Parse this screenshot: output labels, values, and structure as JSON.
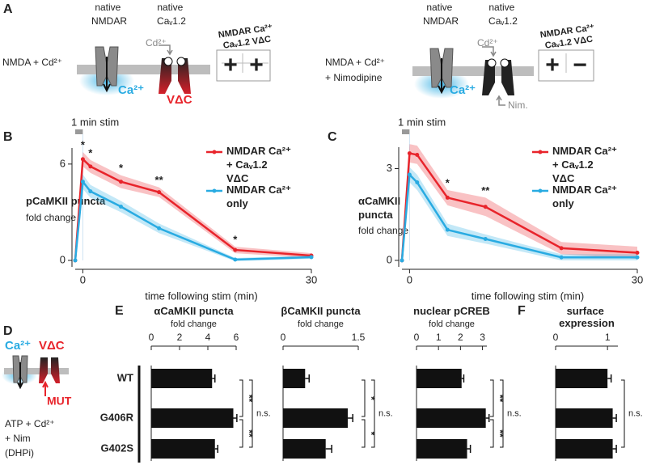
{
  "panel_labels": [
    "A",
    "B",
    "C",
    "D",
    "E",
    "F"
  ],
  "panel_a": [
    {
      "condition": "NMDA + Cd²⁺",
      "channel_1": "native NMDAR",
      "channel_2": "native Caᵥ1.2",
      "ion_blocker": "Cd²⁺",
      "ion": "Ca²⁺",
      "signal": "VΔC",
      "readouts": [
        {
          "label": "NMDAR Ca²⁺",
          "effect": "+",
          "color": "#29abe2"
        },
        {
          "label": "Caᵥ1.2 VΔC",
          "effect": "+",
          "color": "#e8242b"
        }
      ]
    },
    {
      "condition": "NMDA + Cd²⁺ + Nimodipine",
      "channel_1": "native NMDAR",
      "channel_2": "native Caᵥ1.2",
      "ion_blocker": "Cd²⁺",
      "ion": "Ca²⁺",
      "drug": "Nim.",
      "readouts": [
        {
          "label": "NMDAR Ca²⁺",
          "effect": "+",
          "color": "#29abe2"
        },
        {
          "label": "Caᵥ1.2 VΔC",
          "effect": "−",
          "color": "#8c8c8c"
        }
      ]
    }
  ],
  "panel_d": {
    "ion": "Ca²⁺",
    "signal": "VΔC",
    "mutation": "MUT",
    "condition": "ATP + Cd²⁺ + Nim (DHPi)"
  },
  "chart_data": [
    {
      "type": "line",
      "y_label": "pCaMKII puncta",
      "y_sublabel": "fold change",
      "x_label": "time following stim (min)",
      "stim_label": "1 min stim",
      "stim": [
        -1,
        0
      ],
      "x": [
        -1,
        0,
        1,
        5,
        10,
        20,
        30
      ],
      "xlim": [
        -1,
        30
      ],
      "xticks": [
        0,
        30
      ],
      "ylim": [
        0,
        7
      ],
      "yticks": [
        0,
        6
      ],
      "series": [
        {
          "name": "NMDAR Ca²⁺ + Caᵥ1.2 VΔC",
          "color": "#e8242b",
          "values": [
            0,
            6.3,
            5.85,
            4.9,
            4.25,
            0.65,
            0.3
          ],
          "errors": [
            0,
            0.45,
            0.4,
            0.4,
            0.3,
            0.2,
            0.15
          ]
        },
        {
          "name": "NMDAR Ca²⁺ only",
          "color": "#29abe2",
          "values": [
            0,
            4.9,
            4.3,
            3.35,
            2.0,
            0.05,
            0.2
          ],
          "errors": [
            0,
            0.45,
            0.4,
            0.35,
            0.3,
            0.1,
            0.1
          ]
        }
      ],
      "annotations": [
        {
          "x": 0,
          "label": "*"
        },
        {
          "x": 1,
          "label": "*"
        },
        {
          "x": 5,
          "label": "*"
        },
        {
          "x": 10,
          "label": "**"
        },
        {
          "x": 20,
          "label": "*"
        }
      ]
    },
    {
      "type": "line",
      "y_label": "αCaMKII puncta",
      "y_sublabel": "fold change",
      "x_label": "time following stim (min)",
      "stim_label": "1 min stim",
      "stim": [
        -1,
        0
      ],
      "x": [
        -1,
        0,
        1,
        5,
        10,
        20,
        30
      ],
      "xlim": [
        -1,
        30
      ],
      "xticks": [
        0,
        30
      ],
      "ylim": [
        0,
        3.7
      ],
      "yticks": [
        0,
        3
      ],
      "series": [
        {
          "name": "NMDAR Ca²⁺ + Caᵥ1.2 VΔC",
          "color": "#e8242b",
          "values": [
            0,
            3.5,
            3.45,
            2.05,
            1.75,
            0.4,
            0.25
          ],
          "errors": [
            0,
            0.3,
            0.3,
            0.25,
            0.3,
            0.2,
            0.2
          ]
        },
        {
          "name": "NMDAR Ca²⁺ only",
          "color": "#29abe2",
          "values": [
            0,
            2.8,
            2.55,
            1.0,
            0.7,
            0.1,
            0.1
          ],
          "errors": [
            0,
            0.25,
            0.25,
            0.2,
            0.15,
            0.1,
            0.1
          ]
        }
      ],
      "annotations": [
        {
          "x": 5,
          "label": "*"
        },
        {
          "x": 10,
          "label": "**"
        }
      ]
    },
    {
      "type": "bar",
      "orientation": "horizontal",
      "title": "αCaMKII puncta",
      "subtitle": "fold change",
      "categories": [
        "WT",
        "G406R",
        "G402S"
      ],
      "values": [
        4.3,
        5.8,
        4.5
      ],
      "errors": [
        0.2,
        0.25,
        0.2
      ],
      "color": "#111111",
      "xlim": [
        0,
        6
      ],
      "xticks": [
        0,
        2,
        4,
        6
      ],
      "comparisons": [
        {
          "pair": [
            0,
            1
          ],
          "label": "**"
        },
        {
          "pair": [
            1,
            2
          ],
          "label": "**"
        },
        {
          "pair": [
            0,
            2
          ],
          "label": "n.s."
        }
      ]
    },
    {
      "type": "bar",
      "orientation": "horizontal",
      "title": "βCaMKII puncta",
      "subtitle": "fold change",
      "values": [
        0.44,
        1.29,
        0.85
      ],
      "errors": [
        0.08,
        0.1,
        0.12
      ],
      "color": "#111111",
      "xlim": [
        0,
        1.5
      ],
      "xticks": [
        0,
        1.5
      ],
      "comparisons": [
        {
          "pair": [
            0,
            1
          ],
          "label": "*"
        },
        {
          "pair": [
            1,
            2
          ],
          "label": "*"
        },
        {
          "pair": [
            0,
            2
          ],
          "label": "n.s."
        }
      ]
    },
    {
      "type": "bar",
      "orientation": "horizontal",
      "title": "nuclear pCREB",
      "subtitle": "fold change",
      "values": [
        2.05,
        3.15,
        2.3
      ],
      "errors": [
        0.1,
        0.15,
        0.15
      ],
      "color": "#111111",
      "xlim": [
        0,
        3.2
      ],
      "xticks": [
        0,
        1,
        2,
        3
      ],
      "comparisons": [
        {
          "pair": [
            0,
            1
          ],
          "label": "**"
        },
        {
          "pair": [
            1,
            2
          ],
          "label": "**"
        },
        {
          "pair": [
            0,
            2
          ],
          "label": "n.s."
        }
      ]
    },
    {
      "type": "bar",
      "orientation": "horizontal",
      "title": "surface expression",
      "values": [
        1.0,
        1.1,
        1.1
      ],
      "errors": [
        0.07,
        0.07,
        0.07
      ],
      "color": "#111111",
      "xlim": [
        0,
        1.2
      ],
      "xticks": [
        0,
        1
      ],
      "comparisons": [
        {
          "pair": [
            0,
            2
          ],
          "label": "n.s."
        }
      ]
    }
  ]
}
